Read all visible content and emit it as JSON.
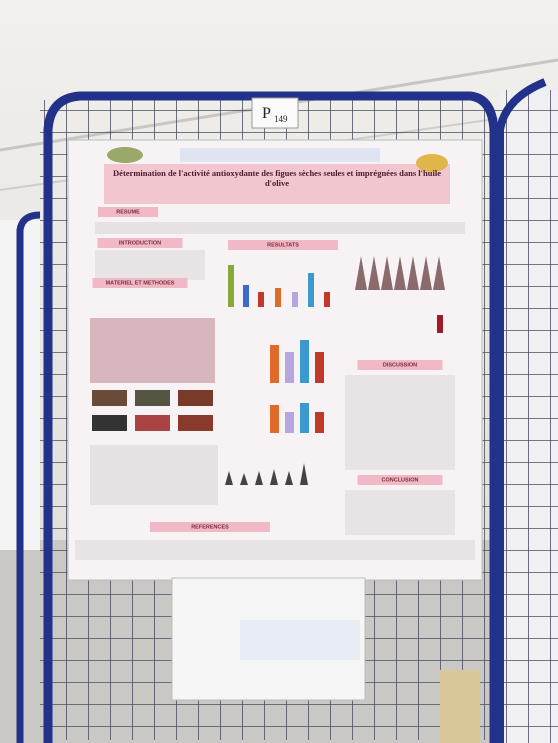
{
  "sign": {
    "letter": "P",
    "number": "149"
  },
  "poster": {
    "title": "Détermination de l'activité antioxydante des figues sèches seules et imprégnées dans l'huile d'olive",
    "sections": [
      "RESUME",
      "INTRODUCTION",
      "RESULTATS",
      "MATERIEL ET METHODES",
      "DISCUSSION",
      "CONCLUSION",
      "REFERENCES"
    ]
  }
}
